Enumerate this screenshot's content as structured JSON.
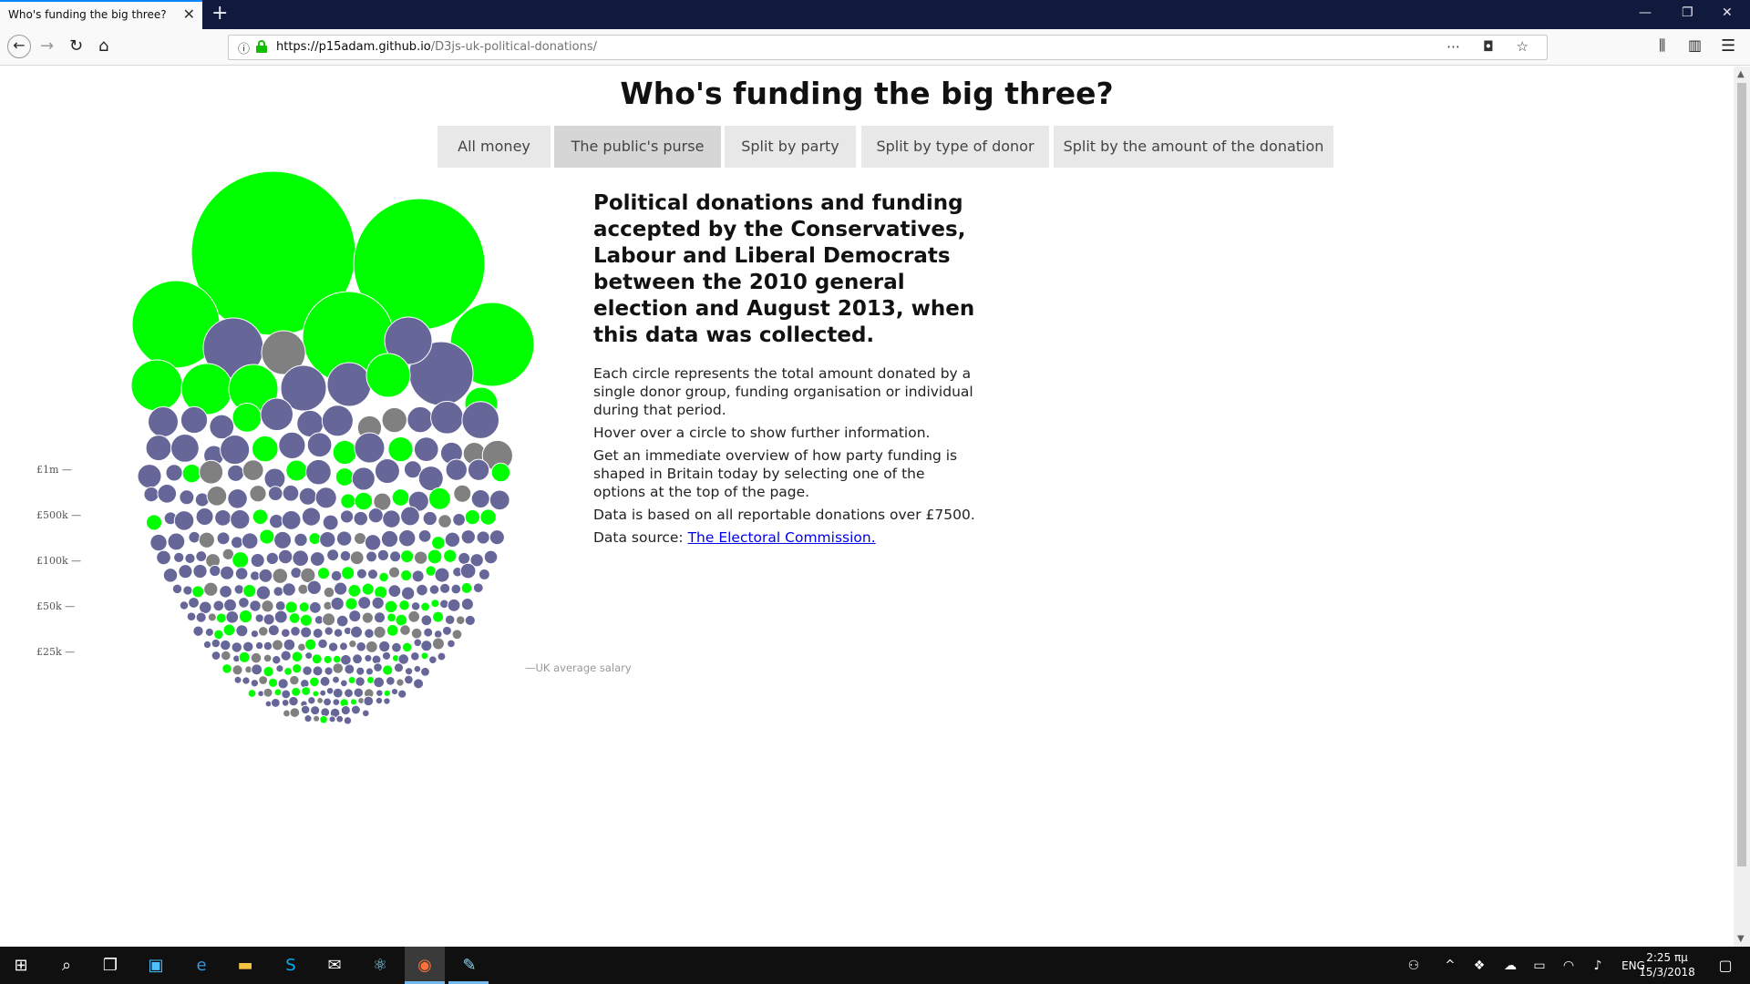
{
  "browser": {
    "tab_title": "Who's funding the big three?",
    "url_host": "https://p15adam.github.io",
    "url_path": "/D3js-uk-political-donations/"
  },
  "page": {
    "title": "Who's funding the big three?",
    "buttons": [
      "All money",
      "The public's purse",
      "Split by party",
      "Split by type of donor",
      "Split by the amount of the donation"
    ],
    "active_button": "The public's purse",
    "heading": "Political donations and funding accepted by the Conservatives, Labour and Liberal Democrats between the 2010 general election and August 2013, when this data was collected.",
    "paragraphs": [
      "Each circle represents the total amount donated by a single donor group, funding organisation or individual during that period.",
      "Hover over a circle to show further information.",
      "Get an immediate overview of how party funding is shaped in Britain today by selecting one of the options at the top of the page.",
      "Data is based on all reportable donations over £7500."
    ],
    "source_prefix": "Data source: ",
    "source_link": "The Electoral Commission."
  },
  "chart": {
    "scale_labels": [
      "£1m —",
      "£500k —",
      "£100k —",
      "£50k —",
      "£25k —"
    ],
    "salary_label": "—UK average salary",
    "colors": {
      "green": "#00ff00",
      "purple": "#666699",
      "grey": "#808080"
    }
  },
  "taskbar": {
    "lang": "ENG",
    "time": "2:25 πμ",
    "date": "15/3/2018"
  }
}
